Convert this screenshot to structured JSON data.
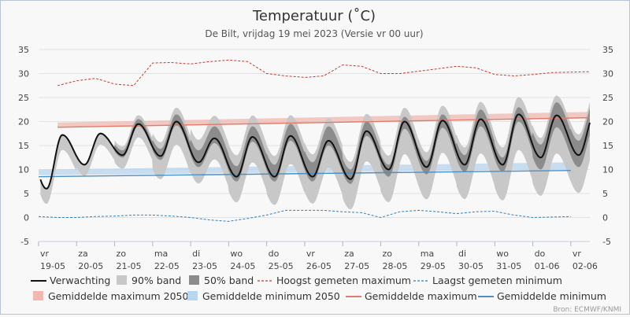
{
  "chart_data": {
    "type": "line",
    "title": "Temperatuur (˚C)",
    "subtitle": "De Bilt, vrijdag 19 mei 2023 (Versie vr 00 uur)",
    "credit": "Bron: ECMWF/KNMI",
    "ylim": [
      -5,
      35
    ],
    "yticks": [
      -5,
      0,
      5,
      10,
      15,
      20,
      25,
      30,
      35
    ],
    "xrange": [
      19,
      33.5
    ],
    "grid": true,
    "legend_position": "bottom",
    "x_ticks": [
      {
        "x": 19,
        "day": "vr",
        "date": "19-05"
      },
      {
        "x": 20,
        "day": "za",
        "date": "20-05"
      },
      {
        "x": 21,
        "day": "zo",
        "date": "21-05"
      },
      {
        "x": 22,
        "day": "ma",
        "date": "22-05"
      },
      {
        "x": 23,
        "day": "di",
        "date": "23-05"
      },
      {
        "x": 24,
        "day": "wo",
        "date": "24-05"
      },
      {
        "x": 25,
        "day": "do",
        "date": "25-05"
      },
      {
        "x": 26,
        "day": "vr",
        "date": "26-05"
      },
      {
        "x": 27,
        "day": "za",
        "date": "27-05"
      },
      {
        "x": 28,
        "day": "zo",
        "date": "28-05"
      },
      {
        "x": 29,
        "day": "ma",
        "date": "29-05"
      },
      {
        "x": 30,
        "day": "di",
        "date": "30-05"
      },
      {
        "x": 31,
        "day": "wo",
        "date": "31-05"
      },
      {
        "x": 32,
        "day": "do",
        "date": "01-06"
      },
      {
        "x": 33,
        "day": "vr",
        "date": "02-06"
      }
    ],
    "forecast": {
      "name": "Verwachting",
      "color": "#111111",
      "daily_max": [
        17.2,
        17.5,
        19.5,
        20.0,
        16.5,
        16.8,
        17.0,
        16.0,
        18.0,
        20.0,
        20.2,
        20.5,
        21.5,
        21.3,
        21.5
      ],
      "daily_min": [
        6.0,
        11.0,
        13.0,
        12.8,
        11.5,
        8.5,
        8.5,
        8.5,
        8.0,
        10.0,
        10.5,
        11.0,
        11.0,
        12.5,
        13.0
      ]
    },
    "band90": {
      "name": "90% band",
      "color": "#c8c8c8",
      "daily_upper": [
        17.5,
        17.8,
        22.0,
        24.0,
        23.0,
        23.0,
        23.0,
        22.5,
        23.0,
        24.0,
        24.5,
        25.5,
        26.5,
        27.0,
        27.5
      ],
      "daily_lower": [
        6.0,
        10.5,
        12.0,
        10.0,
        8.5,
        5.5,
        5.0,
        5.0,
        4.5,
        6.0,
        6.5,
        6.5,
        6.5,
        7.0,
        7.5
      ]
    },
    "band50": {
      "name": "50% band",
      "color": "#8c8c8c",
      "daily_upper": [
        17.3,
        17.6,
        20.5,
        21.5,
        19.0,
        19.0,
        19.5,
        19.0,
        20.0,
        21.0,
        21.5,
        22.5,
        23.0,
        24.0,
        24.5
      ],
      "daily_lower": [
        6.0,
        11.0,
        12.5,
        12.0,
        10.5,
        7.5,
        7.5,
        7.5,
        7.0,
        8.5,
        9.0,
        9.5,
        9.5,
        10.0,
        10.5
      ]
    },
    "record_max": {
      "name": "Hoogst gemeten maximum",
      "color": "#c43a31",
      "x": [
        19.5,
        20.0,
        20.5,
        21.0,
        21.5,
        22.0,
        22.5,
        23.0,
        23.5,
        24.0,
        24.5,
        25.0,
        25.5,
        26.0,
        26.5,
        27.0,
        27.5,
        28.0,
        28.5,
        29.0,
        29.5,
        30.0,
        30.5,
        31.0,
        31.5,
        32.0,
        32.5,
        33.0,
        33.5
      ],
      "values": [
        27.5,
        28.5,
        29.0,
        27.8,
        27.5,
        32.2,
        32.3,
        32.0,
        32.5,
        32.8,
        32.5,
        30.0,
        29.5,
        29.2,
        29.5,
        31.8,
        31.5,
        30.0,
        30.0,
        30.5,
        31.0,
        31.5,
        31.2,
        29.8,
        29.5,
        29.8,
        30.2,
        30.3,
        30.4
      ]
    },
    "record_min": {
      "name": "Laagst gemeten minimum",
      "color": "#2f7fc1",
      "x": [
        19.0,
        19.5,
        20.0,
        20.5,
        21.0,
        21.5,
        22.0,
        22.5,
        23.0,
        23.5,
        24.0,
        24.5,
        25.0,
        25.5,
        26.0,
        26.5,
        27.0,
        27.5,
        28.0,
        28.5,
        29.0,
        29.5,
        30.0,
        30.5,
        31.0,
        31.5,
        32.0,
        32.5,
        33.0
      ],
      "values": [
        0.2,
        0.0,
        0.0,
        0.2,
        0.3,
        0.5,
        0.5,
        0.3,
        0.0,
        -0.5,
        -0.8,
        -0.2,
        0.5,
        1.5,
        1.5,
        1.5,
        1.2,
        1.0,
        0.0,
        1.2,
        1.5,
        1.2,
        0.8,
        1.2,
        1.3,
        0.5,
        0.0,
        0.1,
        0.2
      ]
    },
    "mean_max": {
      "name": "Gemiddelde maximum",
      "color": "#e07a6a",
      "x": [
        19.5,
        33.5
      ],
      "values": [
        18.8,
        20.8
      ]
    },
    "mean_min": {
      "name": "Gemiddelde minimum",
      "color": "#4a90c4",
      "x": [
        19.0,
        33.0
      ],
      "values": [
        8.5,
        9.8
      ]
    },
    "mean_max_2050": {
      "name": "Gemiddelde maximum 2050",
      "color": "#f0b8b0",
      "x": [
        19.5,
        33.5
      ],
      "lower": [
        18.8,
        20.8
      ],
      "upper": [
        19.8,
        22.0
      ]
    },
    "mean_min_2050": {
      "name": "Gemiddelde minimum 2050",
      "color": "#b8d6ee",
      "x": [
        19.0,
        33.0
      ],
      "lower": [
        8.8,
        10.0
      ],
      "upper": [
        10.0,
        11.5
      ]
    }
  }
}
